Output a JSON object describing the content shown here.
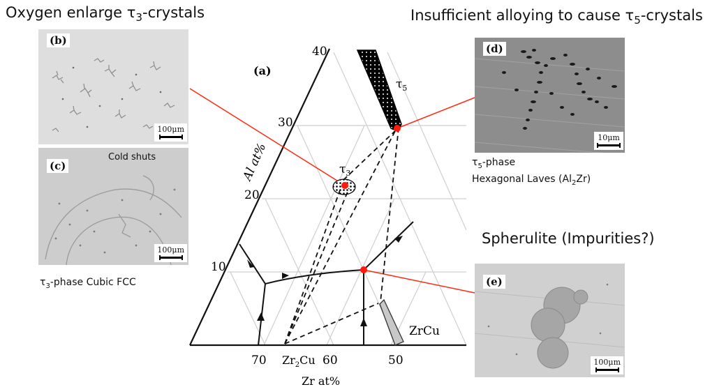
{
  "headings": {
    "top_left": {
      "prefix": "Oxygen enlarge τ",
      "sub": "3",
      "suffix": "-crystals"
    },
    "top_right": {
      "prefix": "Insufficient alloying to cause τ",
      "sub": "5",
      "suffix": "-crystals"
    },
    "middle_right": "Spherulite (Impurities?)"
  },
  "micrographs": {
    "b": {
      "label": "(b)",
      "scale": "100μm"
    },
    "c": {
      "label": "(c)",
      "scale": "100μm",
      "note": "Cold shuts"
    },
    "d": {
      "label": "(d)",
      "scale": "10μm"
    },
    "e": {
      "label": "(e)",
      "scale": "100μm"
    }
  },
  "captions": {
    "tau3": {
      "prefix": "τ",
      "sub": "3",
      "suffix": "-phase  Cubic FCC"
    },
    "tau5": {
      "line1_prefix": "τ",
      "line1_sub": "5",
      "line1_suffix": "-phase",
      "line2_prefix": "Hexagonal Laves (Al",
      "line2_sub": "2",
      "line2_suffix": "Zr)"
    }
  },
  "diagram": {
    "panel_label": "(a)",
    "al_axis_label": "Al at%",
    "zr_axis_label": "Zr at%",
    "al_ticks": [
      "40",
      "30",
      "20",
      "10"
    ],
    "zr_ticks": [
      "70",
      "60",
      "50"
    ],
    "phases": {
      "tau5": {
        "symbol": "τ",
        "sub": "5"
      },
      "tau3": {
        "symbol": "τ",
        "sub": "3"
      },
      "zr2cu": {
        "prefix": "Zr",
        "sub": "2",
        "suffix": "Cu"
      },
      "zrcu": "ZrCu"
    },
    "colors": {
      "connector": "#ff2a10",
      "marker": "#ff1a0a",
      "grid": "#cfcfcf",
      "lines": "#111111"
    }
  }
}
